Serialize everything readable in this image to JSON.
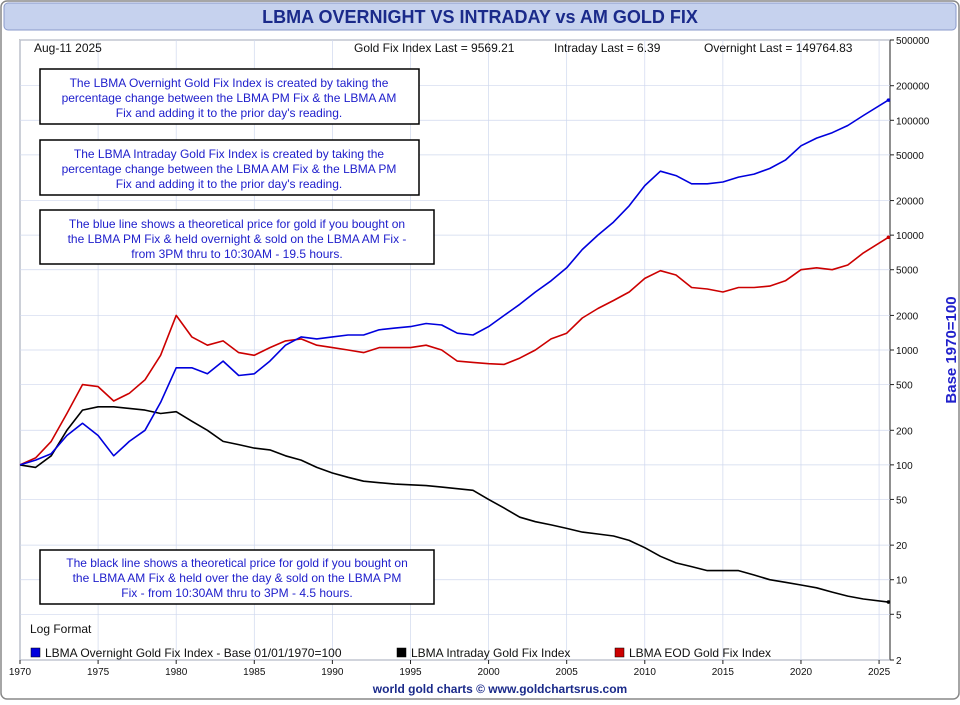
{
  "title": "LBMA OVERNIGHT VS INTRADAY vs AM GOLD FIX",
  "date_label": "Aug-11  2025",
  "stats": {
    "gold_fix": "Gold Fix Index Last = 9569.21",
    "intraday": "Intraday Last = 6.39",
    "overnight": "Overnight Last = 149764.83"
  },
  "notes": [
    [
      "The LBMA Overnight Gold Fix Index is created by taking the",
      "percentage change between the LBMA PM Fix & the LBMA AM",
      "Fix and adding it to the prior day's reading."
    ],
    [
      "The LBMA Intraday Gold Fix Index is created by taking the",
      "percentage change between the LBMA AM Fix & the LBMA PM",
      "Fix and adding it to the prior day's reading."
    ],
    [
      "The blue line shows a theoretical price for gold if you bought on",
      "the LBMA PM Fix & held overnight & sold on the LBMA AM Fix -",
      "from 3PM thru to 10:30AM - 19.5 hours."
    ],
    [
      "The black line shows a theoretical price for gold if you bought on",
      "the LBMA AM Fix & held over the day & sold on the LBMA PM",
      "Fix - from 10:30AM thru to 3PM - 4.5 hours."
    ]
  ],
  "log_format": "Log Format",
  "footer": "world gold charts © www.goldchartsrus.com",
  "colors": {
    "blue": "#0000dd",
    "black": "#000000",
    "red": "#cc0000",
    "title_bg": "#c6d2ee",
    "title_text": "#1a2a8a",
    "text_blue": "#2020cc"
  },
  "chart_data": {
    "type": "line",
    "y_scale": "log",
    "ylabel": "Base 1970=100",
    "ylim": [
      2,
      500000
    ],
    "xlim": [
      1970,
      2025.7
    ],
    "x_ticks": [
      1970,
      1975,
      1980,
      1985,
      1990,
      1995,
      2000,
      2005,
      2010,
      2015,
      2020,
      2025
    ],
    "y_ticks": [
      2,
      5,
      10,
      20,
      50,
      100,
      200,
      500,
      1000,
      2000,
      5000,
      10000,
      20000,
      50000,
      100000,
      200000,
      500000
    ],
    "grid": true,
    "legend_position": "bottom-left",
    "series": [
      {
        "name": "LBMA Overnight Gold Fix Index - Base 01/01/1970=100",
        "color": "#0000dd",
        "x": [
          1970,
          1971,
          1972,
          1973,
          1974,
          1975,
          1976,
          1977,
          1978,
          1979,
          1980,
          1981,
          1982,
          1983,
          1984,
          1985,
          1986,
          1987,
          1988,
          1989,
          1990,
          1991,
          1992,
          1993,
          1994,
          1995,
          1996,
          1997,
          1998,
          1999,
          2000,
          2001,
          2002,
          2003,
          2004,
          2005,
          2006,
          2007,
          2008,
          2009,
          2010,
          2011,
          2012,
          2013,
          2014,
          2015,
          2016,
          2017,
          2018,
          2019,
          2020,
          2021,
          2022,
          2023,
          2024,
          2025.6
        ],
        "values": [
          100,
          110,
          125,
          180,
          230,
          180,
          120,
          160,
          200,
          350,
          700,
          700,
          620,
          800,
          600,
          620,
          800,
          1100,
          1300,
          1250,
          1300,
          1350,
          1350,
          1500,
          1550,
          1600,
          1700,
          1650,
          1400,
          1350,
          1600,
          2000,
          2500,
          3200,
          4000,
          5200,
          7500,
          10000,
          13000,
          18000,
          27000,
          36000,
          33000,
          28000,
          28000,
          29000,
          32000,
          34000,
          38000,
          45000,
          60000,
          70000,
          78000,
          90000,
          110000,
          149764.83
        ]
      },
      {
        "name": "LBMA Intraday Gold Fix Index",
        "color": "#000000",
        "x": [
          1970,
          1971,
          1972,
          1973,
          1974,
          1975,
          1976,
          1977,
          1978,
          1979,
          1980,
          1981,
          1982,
          1983,
          1984,
          1985,
          1986,
          1987,
          1988,
          1989,
          1990,
          1991,
          1992,
          1993,
          1994,
          1995,
          1996,
          1997,
          1998,
          1999,
          2000,
          2001,
          2002,
          2003,
          2004,
          2005,
          2006,
          2007,
          2008,
          2009,
          2010,
          2011,
          2012,
          2013,
          2014,
          2015,
          2016,
          2017,
          2018,
          2019,
          2020,
          2021,
          2022,
          2023,
          2024,
          2025.6
        ],
        "values": [
          100,
          95,
          120,
          200,
          300,
          320,
          320,
          310,
          300,
          280,
          290,
          240,
          200,
          160,
          150,
          140,
          135,
          120,
          110,
          95,
          85,
          78,
          72,
          70,
          68,
          67,
          66,
          64,
          62,
          60,
          50,
          42,
          35,
          32,
          30,
          28,
          26,
          25,
          24,
          22,
          19,
          16,
          14,
          13,
          12,
          12,
          12,
          11,
          10,
          9.5,
          9,
          8.5,
          7.8,
          7.2,
          6.8,
          6.39
        ]
      },
      {
        "name": "LBMA EOD Gold Fix Index",
        "color": "#cc0000",
        "x": [
          1970,
          1971,
          1972,
          1973,
          1974,
          1975,
          1976,
          1977,
          1978,
          1979,
          1980,
          1981,
          1982,
          1983,
          1984,
          1985,
          1986,
          1987,
          1988,
          1989,
          1990,
          1991,
          1992,
          1993,
          1994,
          1995,
          1996,
          1997,
          1998,
          1999,
          2000,
          2001,
          2002,
          2003,
          2004,
          2005,
          2006,
          2007,
          2008,
          2009,
          2010,
          2011,
          2012,
          2013,
          2014,
          2015,
          2016,
          2017,
          2018,
          2019,
          2020,
          2021,
          2022,
          2023,
          2024,
          2025.6
        ],
        "values": [
          100,
          115,
          160,
          280,
          500,
          480,
          360,
          420,
          550,
          900,
          2000,
          1300,
          1100,
          1200,
          950,
          900,
          1050,
          1200,
          1250,
          1100,
          1050,
          1000,
          950,
          1050,
          1050,
          1050,
          1100,
          1000,
          800,
          780,
          760,
          750,
          850,
          1000,
          1250,
          1400,
          1900,
          2300,
          2700,
          3200,
          4200,
          4900,
          4500,
          3500,
          3400,
          3200,
          3500,
          3500,
          3600,
          4000,
          5000,
          5200,
          5000,
          5500,
          7000,
          9569.21
        ]
      }
    ]
  }
}
